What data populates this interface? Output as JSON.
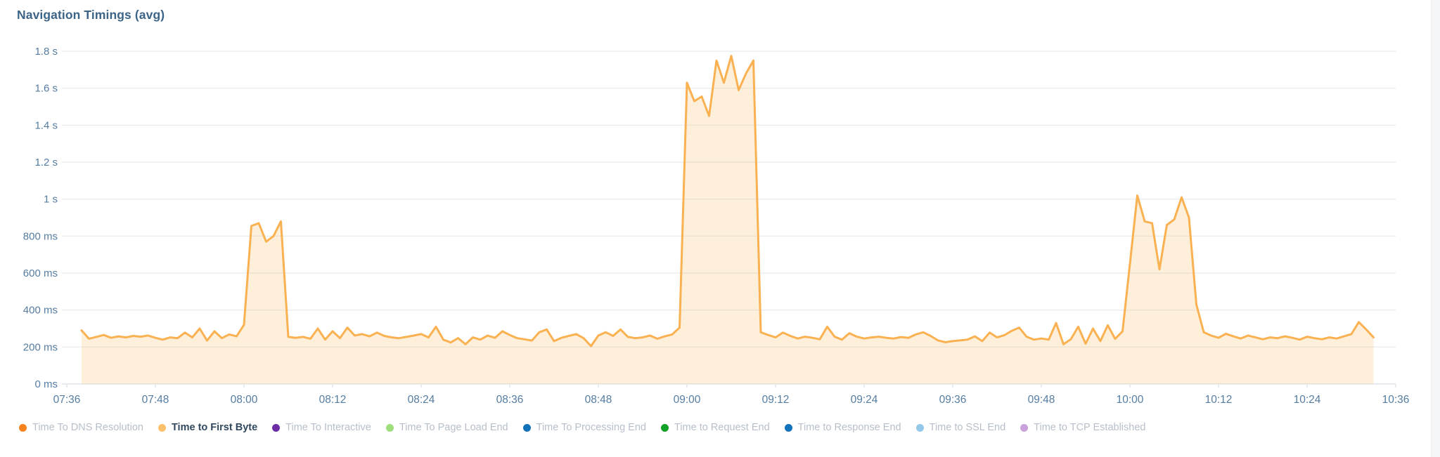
{
  "chart": {
    "title": "Navigation Timings (avg)",
    "title_color": "#3c6487",
    "axis_label_color": "#567da1",
    "grid_color": "#e9edf1",
    "axis_line_color": "#dfe4ea",
    "line_color": "#f9b152",
    "fill_color": "rgba(250,182,90,0.22)"
  },
  "chart_data": {
    "type": "area",
    "title": "Navigation Timings (avg)",
    "xlabel": "",
    "ylabel": "",
    "x_axis": {
      "min": "07:36",
      "max": "10:36",
      "tick_labels": [
        "07:36",
        "07:48",
        "08:00",
        "08:12",
        "08:24",
        "08:36",
        "08:48",
        "09:00",
        "09:12",
        "09:24",
        "09:36",
        "09:48",
        "10:00",
        "10:12",
        "10:24",
        "10:36"
      ]
    },
    "y_axis": {
      "min_ms": 0,
      "max_ms": 1800,
      "tick_step_ms": 200,
      "tick_labels": [
        "0 ms",
        "200 ms",
        "400 ms",
        "600 ms",
        "800 ms",
        "1 s",
        "1.2 s",
        "1.4 s",
        "1.6 s",
        "1.8 s"
      ]
    },
    "grid": true,
    "legend_position": "bottom",
    "active_series": "Time to First Byte",
    "series": [
      {
        "label": "Time To DNS Resolution",
        "color": "#f5821f",
        "state": "inactive"
      },
      {
        "label": "Time to First Byte",
        "color": "#fbc069",
        "state": "active"
      },
      {
        "label": "Time To Interactive",
        "color": "#6d2da5",
        "state": "inactive"
      },
      {
        "label": "Time To Page Load End",
        "color": "#9ede7d",
        "state": "inactive"
      },
      {
        "label": "Time To Processing End",
        "color": "#1373ba",
        "state": "inactive"
      },
      {
        "label": "Time to Request End",
        "color": "#12a227",
        "state": "inactive"
      },
      {
        "label": "Time to Response End",
        "color": "#1373ba",
        "state": "inactive"
      },
      {
        "label": "Time to SSL End",
        "color": "#93c9e8",
        "state": "inactive"
      },
      {
        "label": "Time to TCP Established",
        "color": "#c9a2dd",
        "state": "inactive"
      }
    ],
    "plotted_series": {
      "name": "Time to First Byte",
      "start_time": "07:38",
      "interval_seconds": 60,
      "unit": "ms",
      "values_ms": [
        290,
        245,
        255,
        265,
        250,
        258,
        252,
        260,
        256,
        262,
        250,
        240,
        252,
        248,
        278,
        252,
        300,
        235,
        285,
        248,
        268,
        258,
        320,
        855,
        870,
        770,
        800,
        880,
        255,
        250,
        255,
        245,
        300,
        240,
        285,
        248,
        305,
        262,
        270,
        258,
        278,
        260,
        252,
        248,
        255,
        262,
        270,
        252,
        310,
        240,
        225,
        248,
        215,
        252,
        240,
        262,
        250,
        285,
        265,
        248,
        242,
        235,
        280,
        295,
        232,
        250,
        260,
        270,
        248,
        205,
        262,
        280,
        260,
        295,
        255,
        248,
        252,
        262,
        245,
        258,
        268,
        305,
        1630,
        1530,
        1555,
        1450,
        1750,
        1630,
        1775,
        1590,
        1680,
        1750,
        280,
        265,
        252,
        278,
        260,
        246,
        256,
        250,
        242,
        310,
        256,
        240,
        275,
        256,
        246,
        252,
        256,
        250,
        246,
        254,
        250,
        268,
        280,
        260,
        236,
        226,
        232,
        236,
        240,
        258,
        232,
        278,
        252,
        264,
        288,
        305,
        256,
        240,
        246,
        240,
        330,
        215,
        242,
        310,
        218,
        300,
        232,
        318,
        244,
        285,
        650,
        1020,
        880,
        870,
        620,
        860,
        890,
        1010,
        900,
        430,
        280,
        262,
        250,
        272,
        258,
        246,
        262,
        252,
        242,
        252,
        248,
        258,
        250,
        240,
        256,
        248,
        242,
        252,
        246,
        258,
        270,
        335,
        295,
        252
      ]
    }
  }
}
